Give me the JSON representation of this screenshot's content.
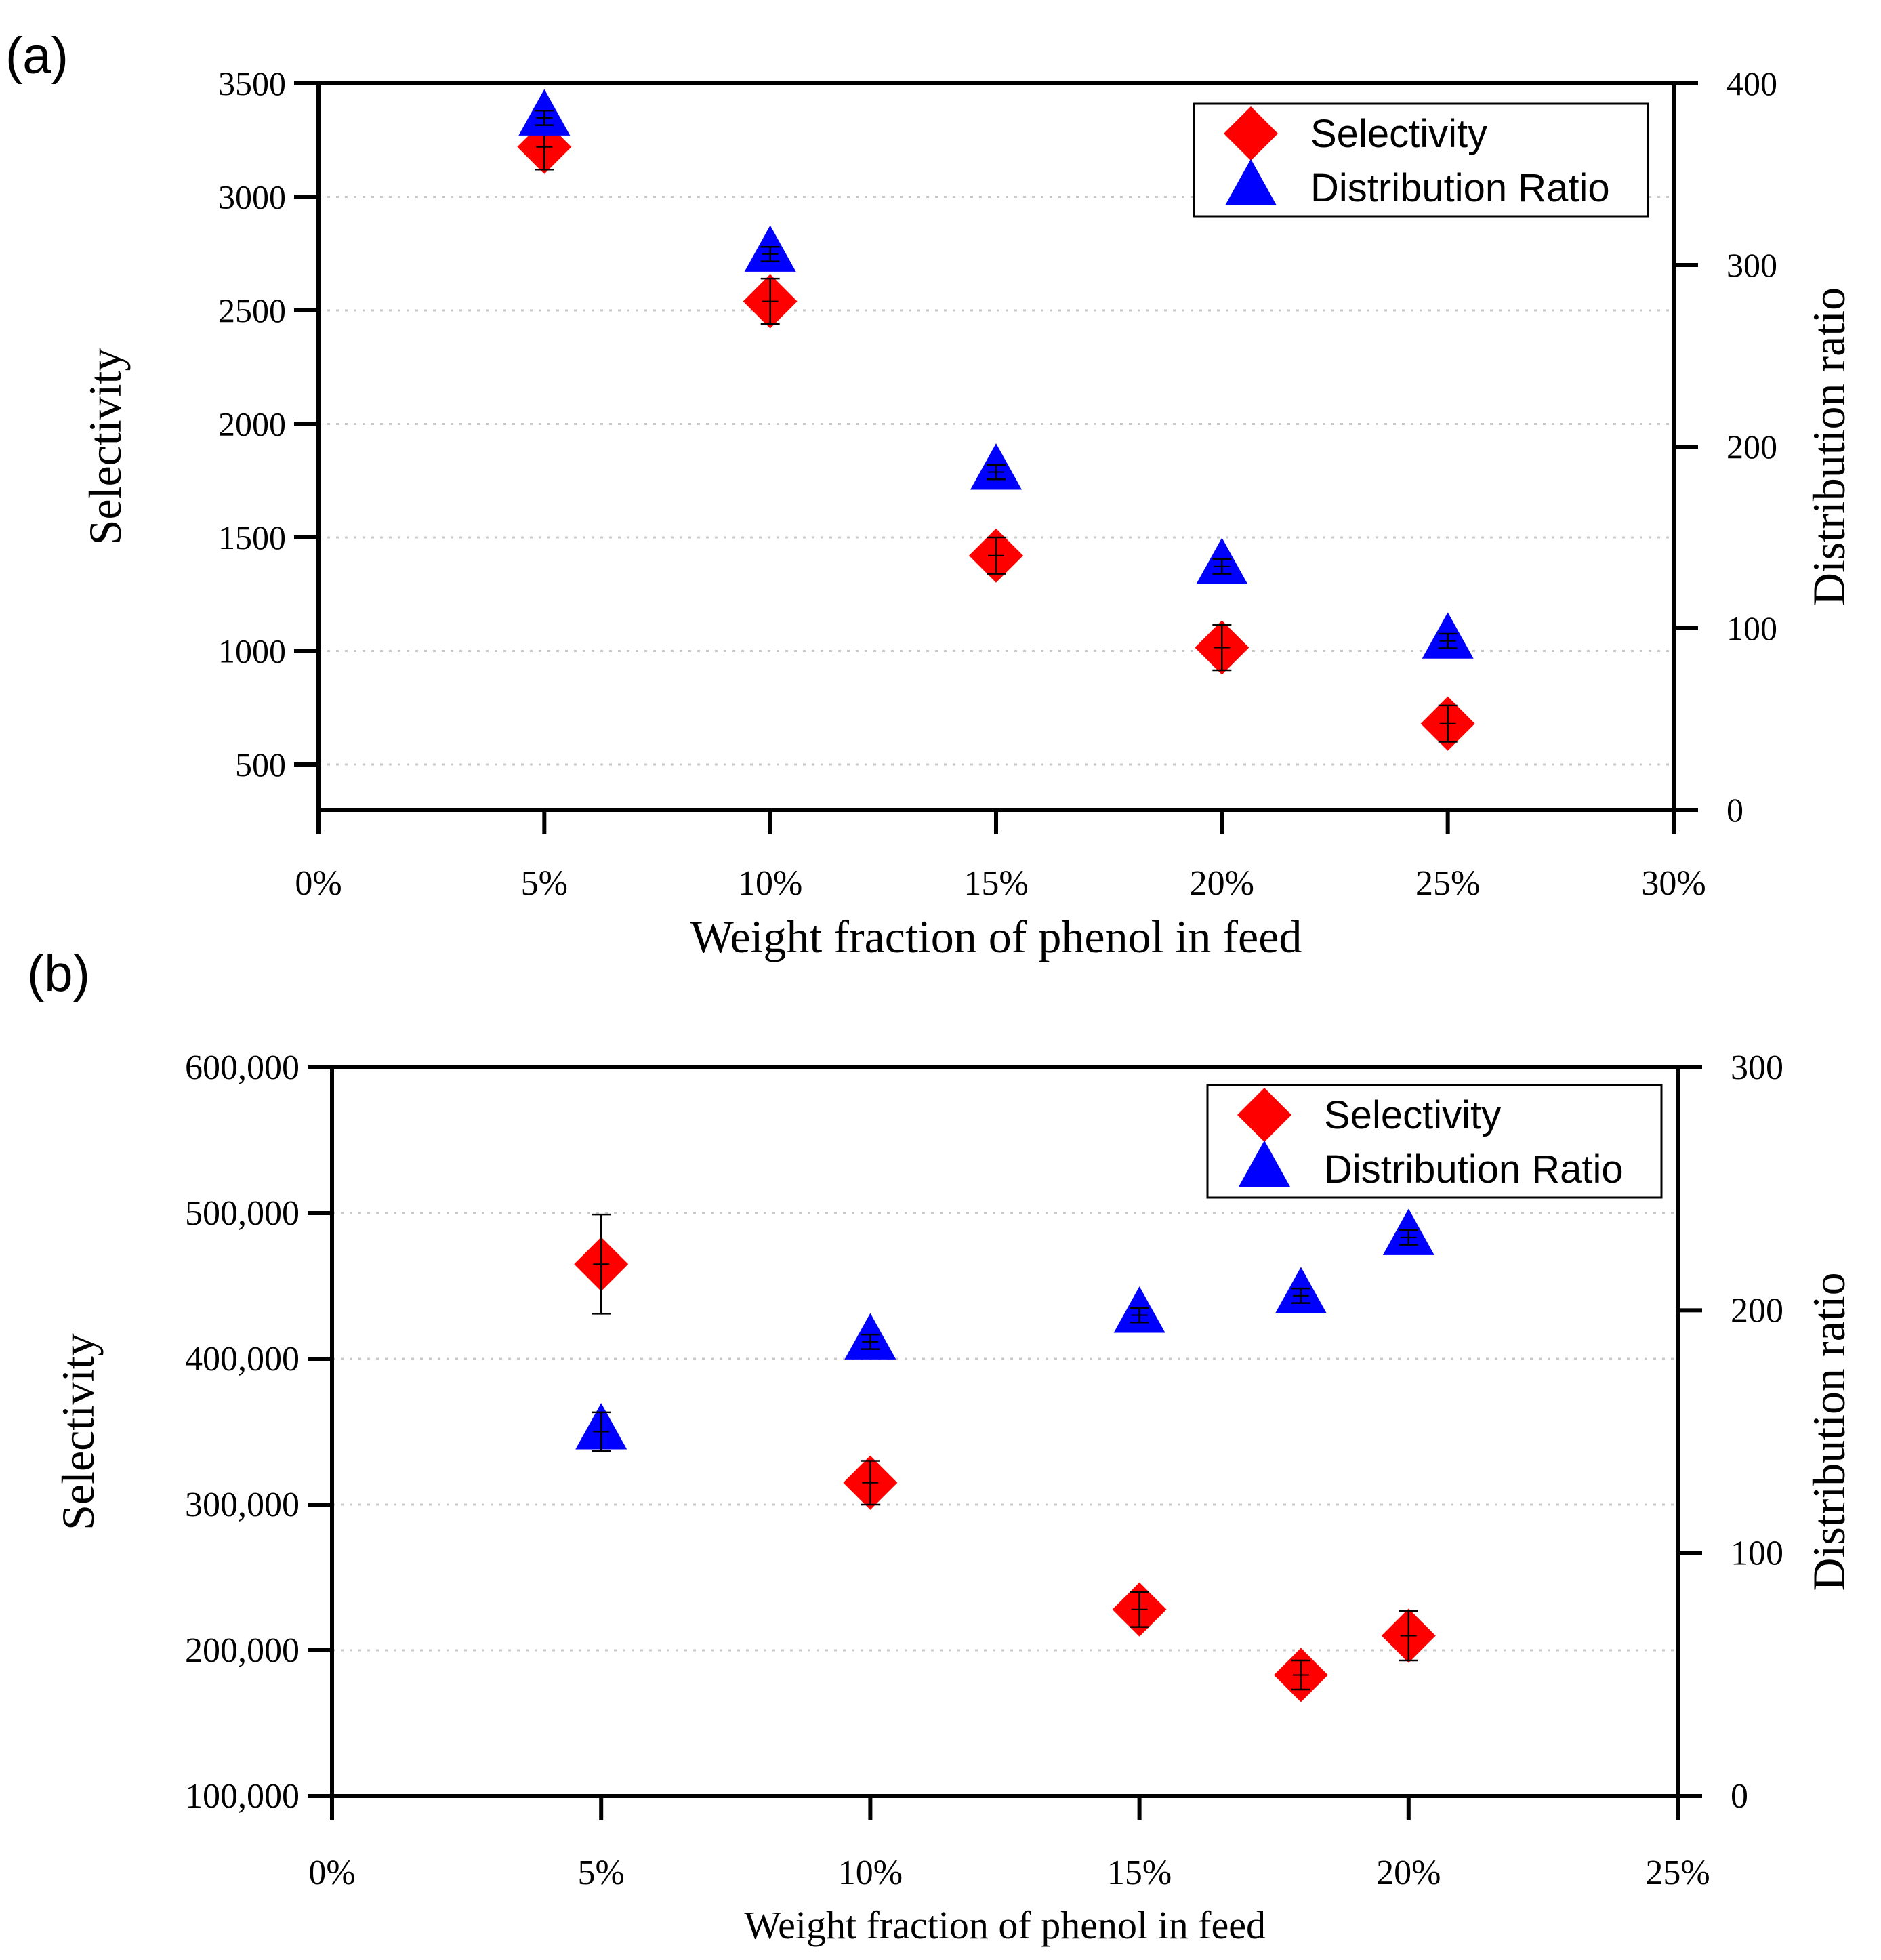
{
  "colors": {
    "selectivity": "#ff0000",
    "distribution": "#0000ff",
    "axis": "#000000",
    "grid": "#c8c8c8"
  },
  "chart_data": [
    {
      "panel_label": "(a)",
      "type": "scatter",
      "xlabel": "Weight fraction of phenol in feed",
      "ylabel": "Selectivity",
      "y2label": "Distribution ratio",
      "xlim": [
        0,
        30
      ],
      "ylim": [
        300,
        3500
      ],
      "y2lim": [
        0,
        400
      ],
      "xticks": [
        0,
        5,
        10,
        15,
        20,
        25,
        30
      ],
      "xtick_labels": [
        "0%",
        "5%",
        "10%",
        "15%",
        "20%",
        "25%",
        "30%"
      ],
      "yticks": [
        500,
        1000,
        1500,
        2000,
        2500,
        3000,
        3500
      ],
      "ytick_labels": [
        "500",
        "1000",
        "1500",
        "2000",
        "2500",
        "3000",
        "3500"
      ],
      "y2ticks": [
        0,
        100,
        200,
        300,
        400
      ],
      "y2tick_labels": [
        "0",
        "100",
        "200",
        "300",
        "400"
      ],
      "gridlines_y": [
        500,
        1000,
        1500,
        2000,
        2500,
        3000
      ],
      "legend_position": "top-right",
      "series": [
        {
          "name": "Selectivity",
          "marker": "diamond",
          "axis": "left",
          "x": [
            5,
            10,
            15,
            20,
            25
          ],
          "y": [
            3220,
            2540,
            1420,
            1015,
            680
          ],
          "err": [
            100,
            100,
            80,
            100,
            80
          ]
        },
        {
          "name": "Distribution Ratio",
          "marker": "triangle",
          "axis": "right",
          "x": [
            5,
            10,
            15,
            20,
            25
          ],
          "y": [
            381,
            306,
            186,
            134,
            93
          ],
          "err": [
            4,
            4,
            4,
            4,
            4
          ]
        }
      ]
    },
    {
      "panel_label": "(b)",
      "type": "scatter",
      "xlabel": "Weight fraction of phenol in feed",
      "ylabel": "Selectivity",
      "y2label": "Distribution ratio",
      "xlim": [
        0,
        25
      ],
      "ylim": [
        100000,
        600000
      ],
      "y2lim": [
        0,
        300
      ],
      "xticks": [
        0,
        5,
        10,
        15,
        20,
        25
      ],
      "xtick_labels": [
        "0%",
        "5%",
        "10%",
        "15%",
        "20%",
        "25%"
      ],
      "yticks": [
        100000,
        200000,
        300000,
        400000,
        500000,
        600000
      ],
      "ytick_labels": [
        "100,000",
        "200,000",
        "300,000",
        "400,000",
        "500,000",
        "600,000"
      ],
      "y2ticks": [
        0,
        100,
        200,
        300
      ],
      "y2tick_labels": [
        "0",
        "100",
        "200",
        "300"
      ],
      "gridlines_y": [
        200000,
        300000,
        400000,
        500000
      ],
      "legend_position": "top-right",
      "series": [
        {
          "name": "Selectivity",
          "marker": "diamond",
          "axis": "left",
          "x": [
            5,
            10,
            15,
            18,
            20
          ],
          "y": [
            465000,
            315000,
            228000,
            183000,
            210000
          ],
          "err": [
            34000,
            15000,
            12000,
            10000,
            17000
          ]
        },
        {
          "name": "Distribution Ratio",
          "marker": "triangle",
          "axis": "right",
          "x": [
            5,
            10,
            15,
            18,
            20
          ],
          "y": [
            150,
            187,
            198,
            206,
            230
          ],
          "err": [
            8,
            3,
            3,
            3,
            3
          ]
        }
      ]
    }
  ]
}
